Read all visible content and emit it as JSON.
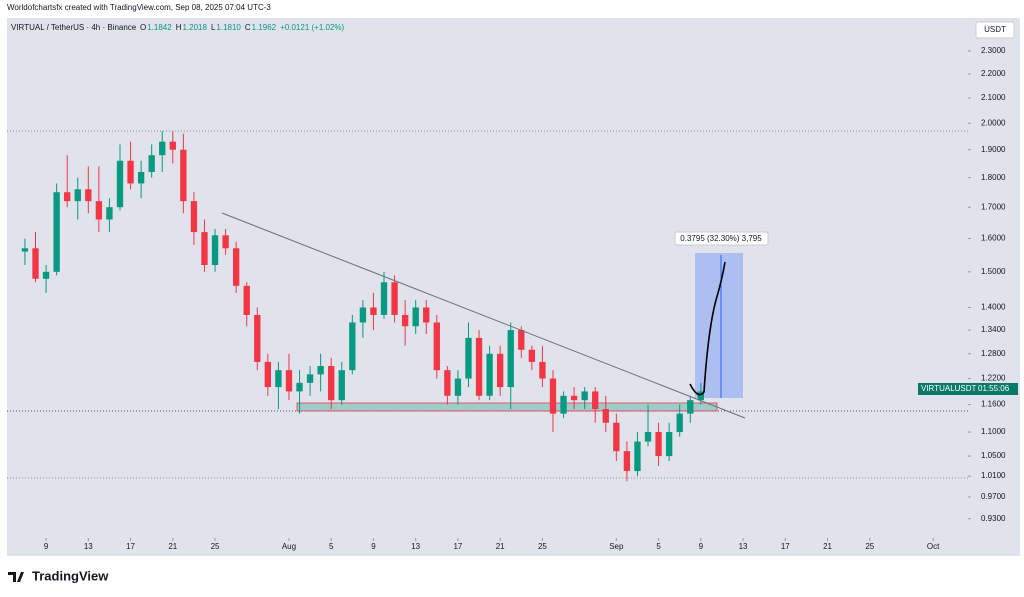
{
  "header": {
    "credit": "Worldofchartsfx created with TradingView.com, Sep 08, 2025 07:04 UTC-3"
  },
  "legend": {
    "symbol": "VIRTUAL / TetherUS · 4h · Binance",
    "items": [
      {
        "key": "O",
        "value": "1.1842"
      },
      {
        "key": "H",
        "value": "1.2018"
      },
      {
        "key": "L",
        "value": "1.1810"
      },
      {
        "key": "C",
        "value": "1.1962"
      }
    ],
    "change": "+0.0121 (+1.02%)"
  },
  "unit_button": "USDT",
  "price_label": {
    "symbol": "VIRTUALUSDT",
    "countdown": "01:55:06"
  },
  "brand": "TradingView",
  "chart_data": {
    "type": "candlestick",
    "log_scale": true,
    "up_color": "#089981",
    "down_color": "#f23645",
    "annotation": "0.3795 (32.30%) 3,795",
    "xlim": [
      5.3,
      96.3
    ],
    "xticks": [
      {
        "value": 9,
        "label": "9"
      },
      {
        "value": 13,
        "label": "13"
      },
      {
        "value": 17,
        "label": "17"
      },
      {
        "value": 21,
        "label": "21"
      },
      {
        "value": 25,
        "label": "25"
      },
      {
        "value": 32,
        "label": "Aug"
      },
      {
        "value": 36,
        "label": "5"
      },
      {
        "value": 40,
        "label": "9"
      },
      {
        "value": 44,
        "label": "13"
      },
      {
        "value": 48,
        "label": "17"
      },
      {
        "value": 52,
        "label": "21"
      },
      {
        "value": 56,
        "label": "25"
      },
      {
        "value": 63,
        "label": "Sep"
      },
      {
        "value": 67,
        "label": "5"
      },
      {
        "value": 71,
        "label": "9"
      },
      {
        "value": 75,
        "label": "13"
      },
      {
        "value": 79,
        "label": "17"
      },
      {
        "value": 83,
        "label": "21"
      },
      {
        "value": 87,
        "label": "25"
      },
      {
        "value": 93,
        "label": "Oct"
      }
    ],
    "ylim": [
      0.896,
      2.452
    ],
    "yticks": [
      {
        "value": 2.3,
        "label": "2.3000"
      },
      {
        "value": 2.2,
        "label": "2.2000"
      },
      {
        "value": 2.1,
        "label": "2.1000"
      },
      {
        "value": 2.0,
        "label": "2.0000"
      },
      {
        "value": 1.9,
        "label": "1.9000"
      },
      {
        "value": 1.8,
        "label": "1.8000"
      },
      {
        "value": 1.7,
        "label": "1.7000"
      },
      {
        "value": 1.6,
        "label": "1.6000"
      },
      {
        "value": 1.5,
        "label": "1.5000"
      },
      {
        "value": 1.4,
        "label": "1.4000"
      },
      {
        "value": 1.34,
        "label": "1.3400"
      },
      {
        "value": 1.28,
        "label": "1.2800"
      },
      {
        "value": 1.22,
        "label": "1.2200"
      },
      {
        "value": 1.16,
        "label": "1.1600"
      },
      {
        "value": 1.1,
        "label": "1.1000"
      },
      {
        "value": 1.05,
        "label": "1.0500"
      },
      {
        "value": 1.01,
        "label": "1.0100"
      },
      {
        "value": 0.97,
        "label": "0.9700"
      },
      {
        "value": 0.93,
        "label": "0.9300"
      }
    ],
    "x": [
      7,
      8,
      9,
      10,
      11,
      12,
      13,
      14,
      15,
      16,
      17,
      18,
      19,
      20,
      21,
      22,
      23,
      24,
      25,
      26,
      27,
      28,
      29,
      30,
      31,
      32,
      33,
      34,
      35,
      36,
      37,
      38,
      39,
      40,
      41,
      42,
      43,
      44,
      45,
      46,
      47,
      48,
      49,
      50,
      51,
      52,
      53,
      54,
      55,
      56,
      57,
      58,
      59,
      60,
      61,
      62,
      63,
      64,
      65,
      66,
      67,
      68,
      69,
      70,
      71
    ],
    "open": [
      1.56,
      1.57,
      1.48,
      1.5,
      1.75,
      1.72,
      1.76,
      1.72,
      1.66,
      1.7,
      1.86,
      1.78,
      1.82,
      1.88,
      1.93,
      1.9,
      1.72,
      1.62,
      1.52,
      1.61,
      1.57,
      1.46,
      1.38,
      1.26,
      1.2,
      1.24,
      1.19,
      1.21,
      1.23,
      1.25,
      1.17,
      1.24,
      1.36,
      1.4,
      1.38,
      1.47,
      1.38,
      1.35,
      1.4,
      1.36,
      1.24,
      1.18,
      1.22,
      1.32,
      1.18,
      1.28,
      1.2,
      1.34,
      1.29,
      1.26,
      1.22,
      1.14,
      1.18,
      1.17,
      1.19,
      1.15,
      1.12,
      1.06,
      1.02,
      1.08,
      1.1,
      1.05,
      1.1,
      1.14,
      1.17
    ],
    "high": [
      1.6,
      1.62,
      1.52,
      1.78,
      1.88,
      1.8,
      1.84,
      1.84,
      1.73,
      1.92,
      1.93,
      1.86,
      1.92,
      1.97,
      1.97,
      1.96,
      1.75,
      1.66,
      1.63,
      1.63,
      1.59,
      1.47,
      1.4,
      1.28,
      1.26,
      1.28,
      1.24,
      1.25,
      1.28,
      1.27,
      1.26,
      1.38,
      1.42,
      1.44,
      1.5,
      1.49,
      1.42,
      1.42,
      1.42,
      1.38,
      1.25,
      1.24,
      1.36,
      1.34,
      1.3,
      1.3,
      1.36,
      1.35,
      1.3,
      1.3,
      1.24,
      1.19,
      1.2,
      1.2,
      1.2,
      1.18,
      1.14,
      1.08,
      1.1,
      1.16,
      1.12,
      1.12,
      1.16,
      1.18,
      1.21
    ],
    "low": [
      1.52,
      1.47,
      1.44,
      1.49,
      1.7,
      1.66,
      1.68,
      1.62,
      1.62,
      1.69,
      1.76,
      1.73,
      1.8,
      1.82,
      1.85,
      1.68,
      1.58,
      1.5,
      1.5,
      1.55,
      1.44,
      1.35,
      1.24,
      1.18,
      1.15,
      1.17,
      1.14,
      1.18,
      1.19,
      1.15,
      1.16,
      1.23,
      1.32,
      1.34,
      1.37,
      1.36,
      1.3,
      1.33,
      1.33,
      1.22,
      1.16,
      1.16,
      1.2,
      1.17,
      1.17,
      1.18,
      1.15,
      1.27,
      1.24,
      1.2,
      1.1,
      1.13,
      1.15,
      1.15,
      1.12,
      1.1,
      1.04,
      1.0,
      1.01,
      1.07,
      1.03,
      1.04,
      1.09,
      1.12,
      1.16
    ],
    "close": [
      1.57,
      1.48,
      1.5,
      1.75,
      1.72,
      1.76,
      1.72,
      1.66,
      1.7,
      1.86,
      1.78,
      1.82,
      1.88,
      1.93,
      1.9,
      1.72,
      1.62,
      1.52,
      1.61,
      1.57,
      1.46,
      1.38,
      1.26,
      1.2,
      1.24,
      1.19,
      1.21,
      1.23,
      1.25,
      1.17,
      1.24,
      1.36,
      1.4,
      1.38,
      1.47,
      1.38,
      1.35,
      1.4,
      1.36,
      1.24,
      1.18,
      1.22,
      1.32,
      1.18,
      1.28,
      1.2,
      1.34,
      1.29,
      1.26,
      1.22,
      1.14,
      1.18,
      1.17,
      1.19,
      1.15,
      1.12,
      1.06,
      1.02,
      1.08,
      1.1,
      1.05,
      1.1,
      1.14,
      1.17,
      1.19
    ]
  }
}
